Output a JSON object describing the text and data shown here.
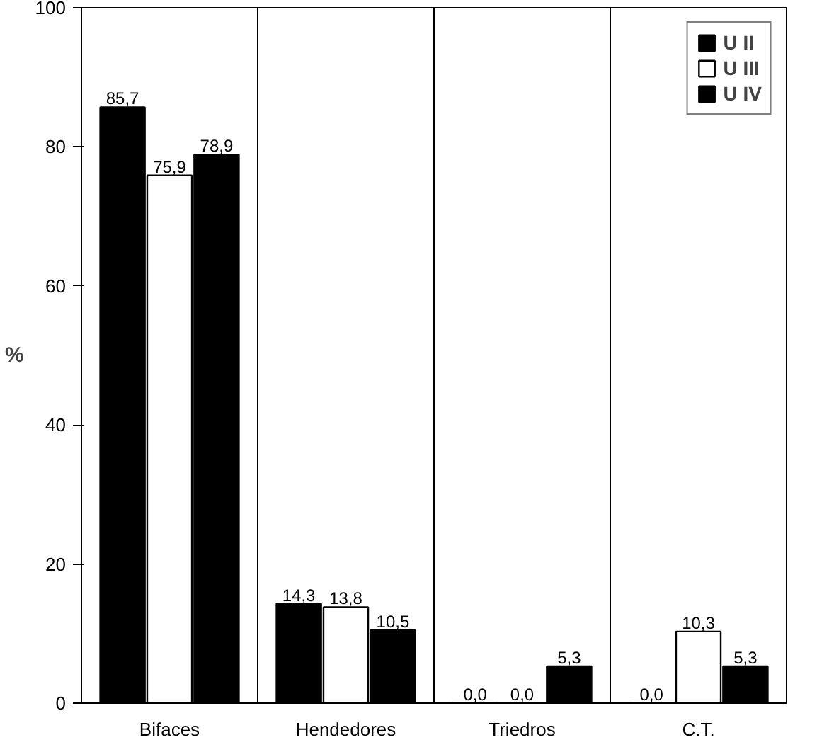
{
  "chart_data": {
    "type": "bar",
    "ylabel": "%",
    "categories": [
      "Bifaces",
      "Hendedores",
      "Triedros",
      "C.T."
    ],
    "series": [
      {
        "name": "U II",
        "color": "#000000",
        "values": [
          85.7,
          14.3,
          0.0,
          0.0
        ],
        "value_labels": [
          "85,7",
          "14,3",
          "0,0",
          "0,0"
        ]
      },
      {
        "name": "U III",
        "color": "#ffffff",
        "values": [
          75.9,
          13.8,
          0.0,
          10.3
        ],
        "value_labels": [
          "75,9",
          "13,8",
          "0,0",
          "10,3"
        ]
      },
      {
        "name": "U IV",
        "color": "#000000",
        "values": [
          78.9,
          10.5,
          5.3,
          5.3
        ],
        "value_labels": [
          "78,9",
          "10,5",
          "5,3",
          "5,3"
        ]
      }
    ],
    "ylim": [
      0,
      100
    ],
    "yticks": [
      0,
      20,
      40,
      60,
      80,
      100
    ],
    "grid": "x",
    "legend": "top right"
  }
}
